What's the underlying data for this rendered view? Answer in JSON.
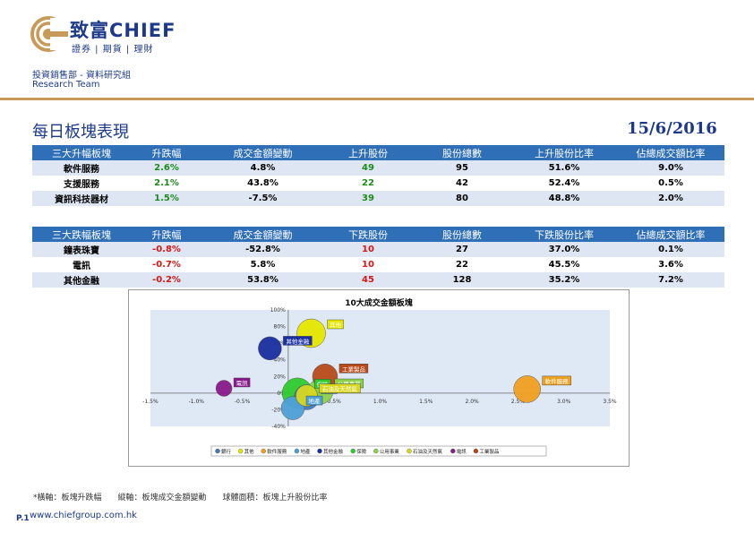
{
  "header": {
    "brand_cn": "致富CHIEF",
    "brand_sub": "證券 | 期貨 | 理財",
    "dept_line1": "投資銷售部 - 資料研究組",
    "dept_line2": "Research Team"
  },
  "page": {
    "title": "每日板塊表現",
    "date": "15/6/2016"
  },
  "colors": {
    "primary": "#1d3a8a",
    "header_bg": "#2f6fb7",
    "rule": "#c89a5a",
    "up": "#1e8a1e",
    "down": "#d31818"
  },
  "top_gainers": {
    "headers": [
      "三大升幅板塊",
      "升跌幅",
      "成交金額變動",
      "上升股份",
      "股份總數",
      "上升股份比率",
      "佔總成交額比率"
    ],
    "rows": [
      [
        "軟件服務",
        "2.6%",
        "4.8%",
        "49",
        "95",
        "51.6%",
        "9.0%"
      ],
      [
        "支援服務",
        "2.1%",
        "43.8%",
        "22",
        "42",
        "52.4%",
        "0.5%"
      ],
      [
        "資訊科技器材",
        "1.5%",
        "-7.5%",
        "39",
        "80",
        "48.8%",
        "2.0%"
      ]
    ]
  },
  "top_losers": {
    "headers": [
      "三大跌幅板塊",
      "升跌幅",
      "成交金額變動",
      "下跌股份",
      "股份總數",
      "下跌股份比率",
      "佔總成交額比率"
    ],
    "rows": [
      [
        "鐘表珠寶",
        "-0.8%",
        "-52.8%",
        "10",
        "27",
        "37.0%",
        "0.1%"
      ],
      [
        "電訊",
        "-0.7%",
        "5.8%",
        "10",
        "22",
        "45.5%",
        "3.6%"
      ],
      [
        "其他金融",
        "-0.2%",
        "53.8%",
        "45",
        "128",
        "35.2%",
        "7.2%"
      ]
    ]
  },
  "chart_data": {
    "type": "scatter",
    "title": "10大成交金額板塊",
    "xlim": [
      -1.5,
      3.5
    ],
    "ylim": [
      -40,
      100
    ],
    "x_ticks": [
      "-1.5%",
      "-1.0%",
      "-0.5%",
      "0%",
      "0.5%",
      "1.0%",
      "1.5%",
      "2.0%",
      "2.5%",
      "3.0%",
      "3.5%"
    ],
    "y_ticks": [
      "100%",
      "80%",
      "60%",
      "40%",
      "20%",
      "0%",
      "-20%",
      "-40%"
    ],
    "series": [
      {
        "name": "銀行",
        "x": 0.2,
        "y": -5,
        "size": 14,
        "color": "#3d7bbf"
      },
      {
        "name": "其他",
        "x": 0.25,
        "y": 72,
        "size": 16,
        "color": "#e6e600"
      },
      {
        "name": "軟件服務",
        "x": 2.6,
        "y": 4.8,
        "size": 15,
        "color": "#f0a020"
      },
      {
        "name": "地產",
        "x": 0.05,
        "y": -18,
        "size": 13,
        "color": "#4fa0d8"
      },
      {
        "name": "其他金融",
        "x": -0.2,
        "y": 53.8,
        "size": 13,
        "color": "#1a2fa0"
      },
      {
        "name": "保險",
        "x": 0.1,
        "y": 0,
        "size": 17,
        "color": "#2ecc2e"
      },
      {
        "name": "公用事業",
        "x": 0.35,
        "y": 2,
        "size": 14,
        "color": "#8bd14d"
      },
      {
        "name": "石油及天然氣",
        "x": 0.2,
        "y": -3,
        "size": 12,
        "color": "#d8d820"
      },
      {
        "name": "電訊",
        "x": -0.7,
        "y": 5.8,
        "size": 9,
        "color": "#8a1a8a"
      },
      {
        "name": "工業製品",
        "x": 0.4,
        "y": 20,
        "size": 14,
        "color": "#b84a1a"
      }
    ]
  },
  "footer": {
    "note": "*橫軸：板塊升跌幅　　縱軸：板塊成交金額變動　　球體面積：板塊上升股份比率",
    "page_num": "P.1",
    "url": "www.chiefgroup.com.hk"
  }
}
